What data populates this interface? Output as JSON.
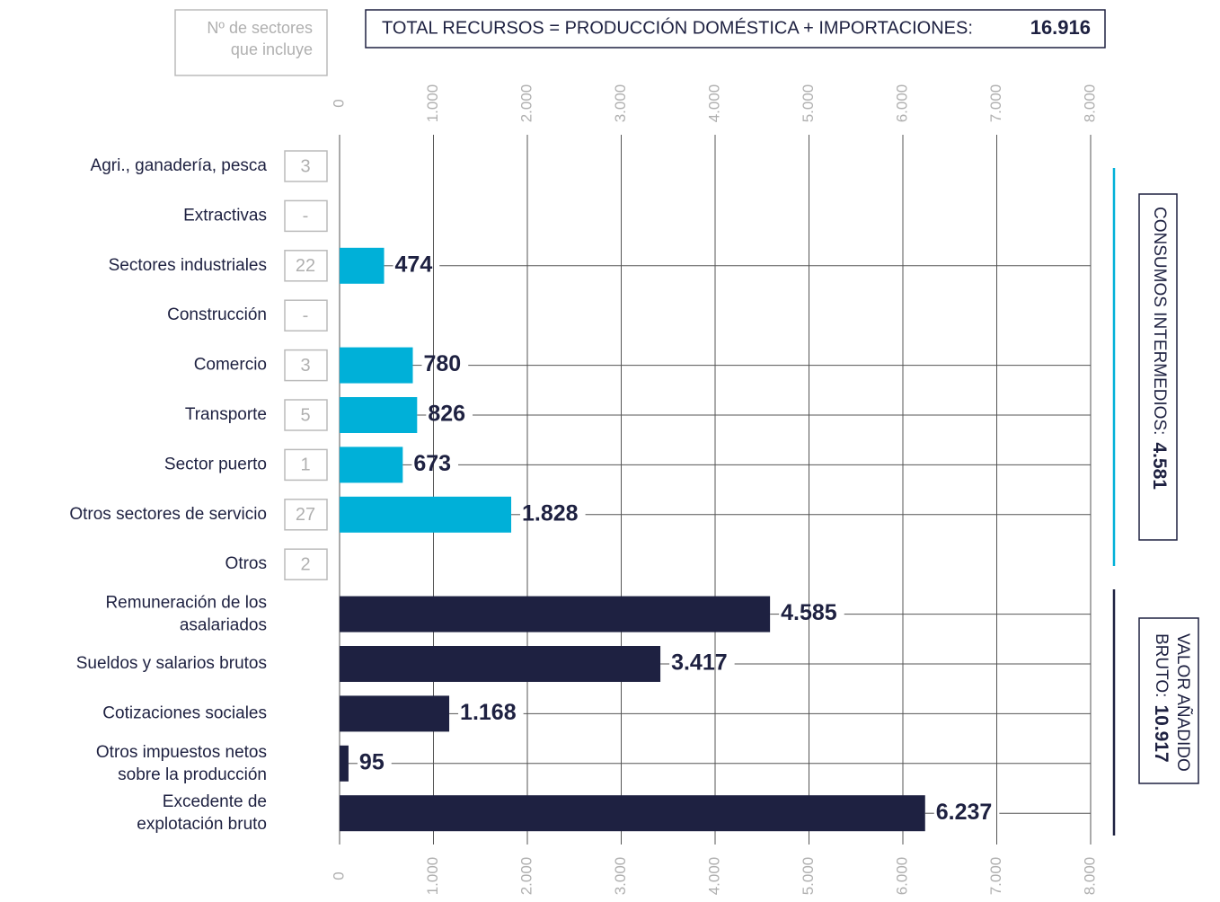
{
  "chart_data": {
    "type": "bar",
    "orientation": "horizontal",
    "header": {
      "total_label": "TOTAL RECURSOS = PRODUCCIÓN DOMÉSTICA + IMPORTACIONES:",
      "total_value": "16.916",
      "count_header": [
        "Nº de sectores",
        "que incluye"
      ]
    },
    "categories": [
      "Agri., ganadería, pesca",
      "Extractivas",
      "Sectores industriales",
      "Construcción",
      "Comercio",
      "Transporte",
      "Sector puerto",
      "Otros sectores de servicio",
      "Otros",
      [
        "Remuneración de los",
        "asalariados"
      ],
      "Sueldos y salarios brutos",
      "Cotizaciones sociales",
      [
        "Otros impuestos netos",
        "sobre la producción"
      ],
      [
        "Excedente de",
        "explotación bruto"
      ]
    ],
    "sector_counts": [
      "3",
      "-",
      "22",
      "-",
      "3",
      "5",
      "1",
      "27",
      "2",
      null,
      null,
      null,
      null,
      null
    ],
    "values": [
      null,
      null,
      474,
      null,
      780,
      826,
      673,
      1828,
      null,
      4585,
      3417,
      1168,
      95,
      6237
    ],
    "value_labels": [
      null,
      null,
      "474",
      null,
      "780",
      "826",
      "673",
      "1.828",
      null,
      "4.585",
      "3.417",
      "1.168",
      "95",
      "6.237"
    ],
    "bar_colors": [
      "#00b0d8",
      "#00b0d8",
      "#00b0d8",
      "#00b0d8",
      "#00b0d8",
      "#00b0d8",
      "#00b0d8",
      "#00b0d8",
      "#00b0d8",
      "#1e2141",
      "#1e2141",
      "#1e2141",
      "#1e2141",
      "#1e2141"
    ],
    "xlim": [
      0,
      8000
    ],
    "xticks": [
      0,
      {
        "value": 1000,
        "label": "1.000"
      },
      {
        "value": 2000,
        "label": "2.000"
      },
      {
        "value": 3000,
        "label": "3.000"
      },
      {
        "value": 4000,
        "label": "4.000"
      },
      {
        "value": 5000,
        "label": "5.000"
      },
      {
        "value": 6000,
        "label": "6.000"
      },
      {
        "value": 7000,
        "label": "7.000"
      },
      {
        "value": 8000,
        "label": "8.000"
      }
    ],
    "groups": [
      {
        "label": "CONSUMOS INTERMEDIOS:",
        "value": "4.581",
        "color": "#00b0d8"
      },
      {
        "label": [
          "VALOR AÑADIDO",
          "BRUTO:"
        ],
        "value": "10.917",
        "color": "#1e2141"
      }
    ]
  }
}
